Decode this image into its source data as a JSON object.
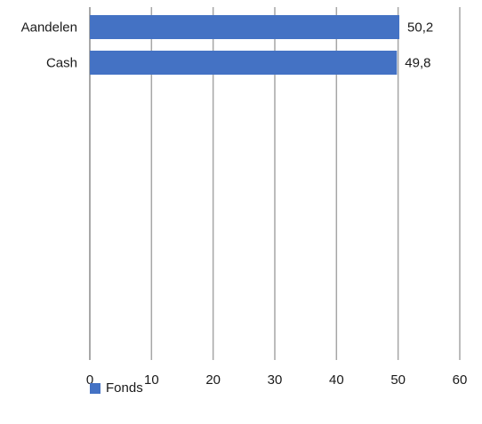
{
  "chart_data": {
    "type": "bar",
    "orientation": "horizontal",
    "categories": [
      "Aandelen",
      "Cash"
    ],
    "series": [
      {
        "name": "Fonds",
        "values": [
          50.2,
          49.8
        ],
        "color": "#4472C4"
      }
    ],
    "data_labels": [
      "50,2",
      "49,8"
    ],
    "xlim": [
      0,
      60
    ],
    "x_ticks": [
      "0",
      "10",
      "20",
      "30",
      "40",
      "50",
      "60"
    ],
    "grid": true,
    "legend_position": "bottom-left"
  }
}
